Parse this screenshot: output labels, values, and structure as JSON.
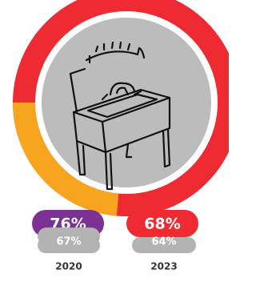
{
  "items": [
    {
      "primary": "76%",
      "secondary": "67%",
      "year": "2020"
    },
    {
      "primary": "68%",
      "secondary": "64%",
      "year": "2023"
    }
  ]
}
